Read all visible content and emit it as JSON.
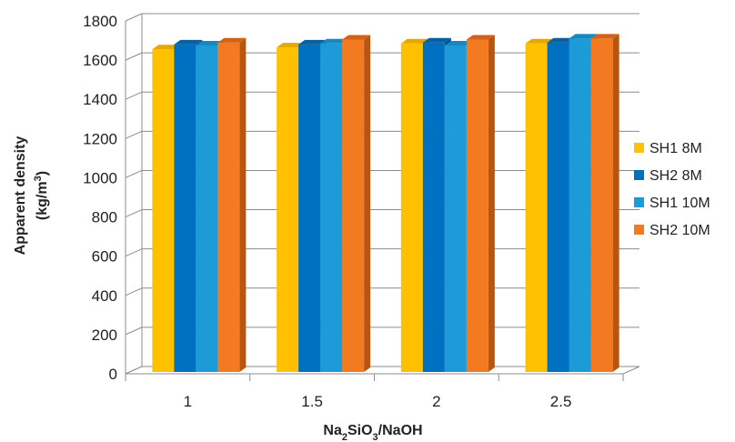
{
  "chart_data": {
    "type": "bar",
    "style": "3d-clustered-column",
    "categories": [
      "1",
      "1.5",
      "2",
      "2.5"
    ],
    "series": [
      {
        "name": "SH1 8M",
        "values": [
          1655,
          1665,
          1685,
          1685
        ],
        "color": "#FFC000",
        "top_color": "#E6A800",
        "side_color": "#C79200"
      },
      {
        "name": "SH2 8M",
        "values": [
          1680,
          1680,
          1690,
          1690
        ],
        "color": "#0070C0",
        "top_color": "#0A5FA0",
        "side_color": "#004F8A"
      },
      {
        "name": "SH1 10M",
        "values": [
          1675,
          1685,
          1675,
          1710
        ],
        "color": "#1C9BD8",
        "top_color": "#1788BF",
        "side_color": "#1372A0"
      },
      {
        "name": "SH2 10M",
        "values": [
          1690,
          1705,
          1705,
          1710
        ],
        "color": "#F47A22",
        "top_color": "#D0621A",
        "side_color": "#B85510"
      }
    ],
    "xlabel": {
      "main": "Na",
      "sub1": "2",
      "mid": "SiO",
      "sub2": "3",
      "tail": "/NaOH"
    },
    "ylabel": {
      "line1": "Apparent density",
      "line2_pre": "(kg/m",
      "line2_sup": "3",
      "line2_post": ")"
    },
    "ylim": [
      0,
      1800
    ],
    "yticks": [
      0,
      200,
      400,
      600,
      800,
      1000,
      1200,
      1400,
      1600,
      1800
    ],
    "grid": true,
    "legend_position": "right"
  }
}
